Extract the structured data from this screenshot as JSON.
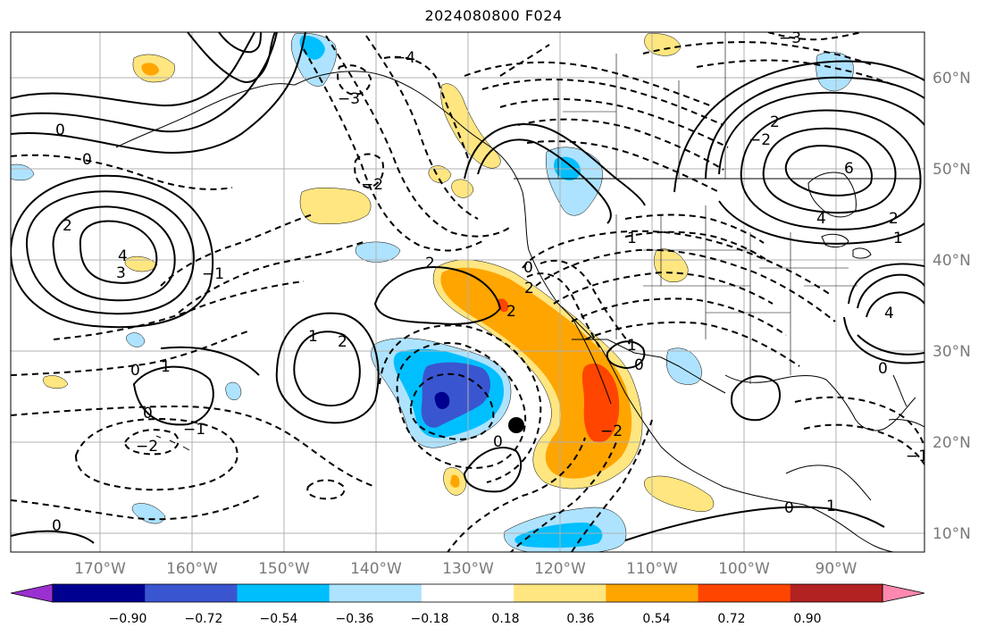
{
  "title": "2024080800 F024",
  "longitude_labels": [
    "170°W",
    "160°W",
    "150°W",
    "140°W",
    "130°W",
    "120°W",
    "110°W",
    "100°W",
    "90°W"
  ],
  "latitude_labels": [
    "60°N",
    "50°N",
    "40°N",
    "30°N",
    "20°N",
    "10°N"
  ],
  "colorbar": {
    "colors": [
      "#9b30d0",
      "#000090",
      "#3a55d0",
      "#00bfff",
      "#aee3ff",
      "#ffffff",
      "#ffe680",
      "#ffa500",
      "#ff4500",
      "#b22222",
      "#ff88b0"
    ],
    "tick_labels": [
      "−0.90",
      "−0.72",
      "−0.54",
      "−0.36",
      "−0.18",
      "0.18",
      "0.36",
      "0.54",
      "0.72",
      "0.90"
    ]
  },
  "contour_labels": [
    "0",
    "0",
    "2",
    "4",
    "3",
    "2",
    "1",
    "1",
    "0",
    "0",
    "−2",
    "−1",
    "−4",
    "−3",
    "−2",
    "−1",
    "−2",
    "2",
    "0",
    "2",
    "1",
    "2",
    "0",
    "1",
    "0",
    "4",
    "6",
    "2",
    "−3",
    "2",
    "−2",
    "4",
    "1",
    "0",
    "1",
    "0",
    "−1",
    "0"
  ],
  "marker": "storm-center-dot"
}
